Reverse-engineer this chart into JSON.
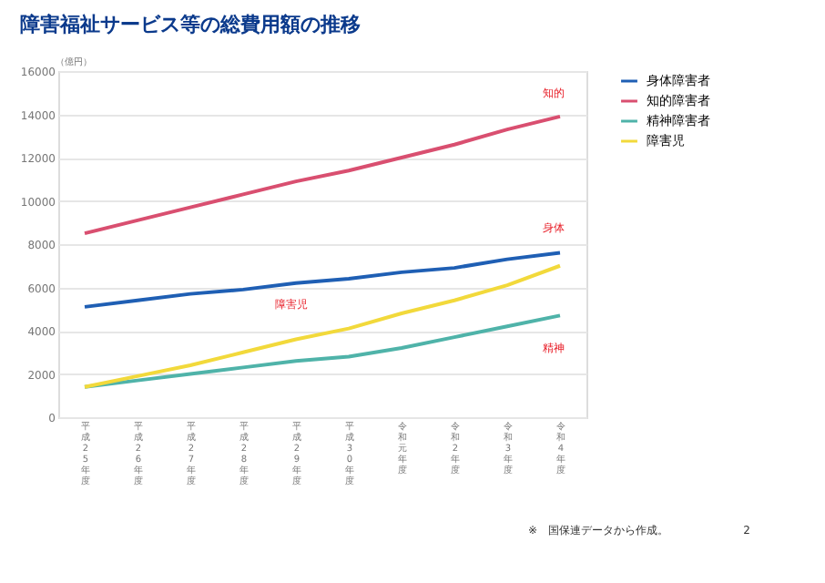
{
  "chart_data": {
    "type": "line",
    "title": "障害福祉サービス等の総費用額の推移",
    "ylabel": "（億円）",
    "categories": [
      "平成25年度",
      "平成26年度",
      "平成27年度",
      "平成28年度",
      "平成29年度",
      "平成30年度",
      "令和元年度",
      "令和2年度",
      "令和3年度",
      "令和4年度"
    ],
    "series": [
      {
        "name": "身体障害者",
        "color": "#1f5fb4",
        "values": [
          5100,
          5400,
          5700,
          5900,
          6200,
          6400,
          6700,
          6900,
          7300,
          7600
        ]
      },
      {
        "name": "知的障害者",
        "color": "#d94f70",
        "values": [
          8500,
          9100,
          9700,
          10300,
          10900,
          11400,
          12000,
          12600,
          13300,
          13900
        ]
      },
      {
        "name": "精神障害者",
        "color": "#4fb3a9",
        "values": [
          1400,
          1700,
          2000,
          2300,
          2600,
          2800,
          3200,
          3700,
          4200,
          4700
        ]
      },
      {
        "name": "障害児",
        "color": "#f2d93b",
        "values": [
          1400,
          1900,
          2400,
          3000,
          3600,
          4100,
          4800,
          5400,
          6100,
          7000
        ]
      }
    ],
    "ylim": [
      0,
      16000
    ],
    "yticks": [
      0,
      2000,
      4000,
      6000,
      8000,
      10000,
      12000,
      14000,
      16000
    ],
    "grid": "y",
    "legend": "right",
    "line_style": "solid",
    "marker": "none",
    "annotations": [
      "知的",
      "身体",
      "障害児",
      "精神",
      "※　国保連データから作成。",
      "2"
    ]
  }
}
